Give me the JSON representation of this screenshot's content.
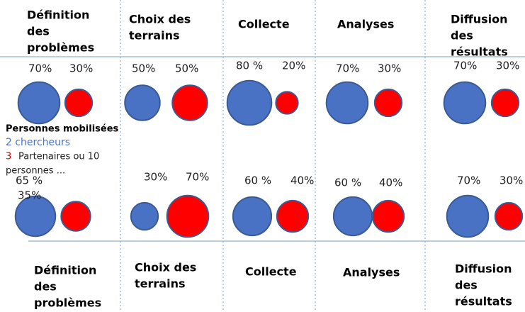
{
  "top_headers": [
    [
      "Définition",
      "des",
      "problèmes"
    ],
    [
      "Choix des",
      "terrains"
    ],
    [
      "Collecte"
    ],
    [
      "Analyses"
    ],
    [
      "Diffusion",
      "des",
      "résultats"
    ]
  ],
  "bottom_headers": [
    [
      "Définition",
      "des",
      "problèmes"
    ],
    [
      "Choix des",
      "terrains"
    ],
    [
      "Collecte"
    ],
    [
      "Analyses"
    ],
    [
      "Diffusion",
      "des",
      "résultats"
    ]
  ],
  "rows": [
    [
      [
        {
          "value": 70,
          "label": "70%"
        },
        {
          "value": 30,
          "label": "30%"
        }
      ],
      [
        {
          "value": 50,
          "label": "50%"
        },
        {
          "value": 50,
          "label": "50%"
        }
      ],
      [
        {
          "value": 80,
          "label": "80 %"
        },
        {
          "value": 20,
          "label": "20%"
        }
      ],
      [
        {
          "value": 70,
          "label": "70%"
        },
        {
          "value": 30,
          "label": "30%"
        }
      ],
      [
        {
          "value": 70,
          "label": "70%"
        },
        {
          "value": 30,
          "label": "30%"
        }
      ]
    ],
    [
      [
        {
          "value": 65,
          "label": "65 %"
        },
        {
          "value": 35,
          "label": "35%"
        }
      ],
      [
        {
          "value": 30,
          "label": "30%"
        },
        {
          "value": 70,
          "label": "70%"
        }
      ],
      [
        {
          "value": 60,
          "label": "60 %"
        },
        {
          "value": 40,
          "label": "40%"
        }
      ],
      [
        {
          "value": 60,
          "label": "60 %"
        },
        {
          "value": 40,
          "label": "40%"
        }
      ],
      [
        {
          "value": 70,
          "label": "70%"
        },
        {
          "value": 30,
          "label": "30%"
        }
      ]
    ]
  ],
  "legend": {
    "title": "Personnes mobilisées",
    "researchers": "2 chercheurs",
    "partners_number": "3",
    "partners_text": [
      "Partenaires ou 10",
      "personnes ..."
    ]
  }
}
